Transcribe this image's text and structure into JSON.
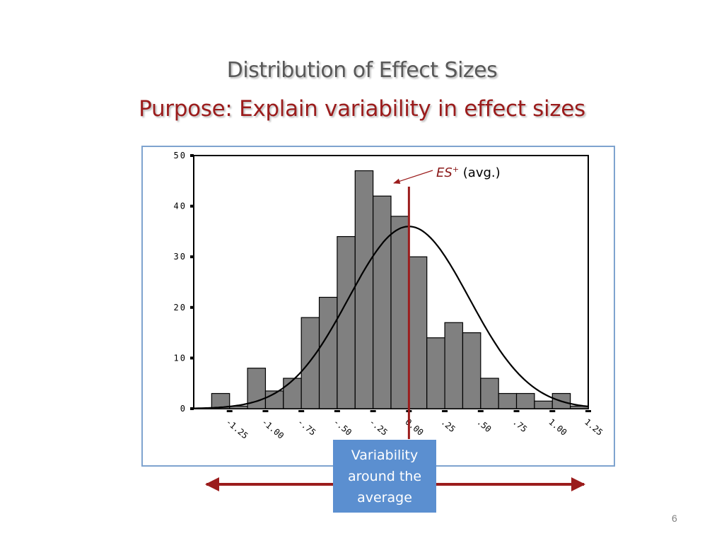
{
  "title": "Distribution of Effect Sizes",
  "subtitle": "Purpose: Explain variability in effect sizes",
  "page_number": "6",
  "annotation": {
    "es_symbol": "ES",
    "es_superscript": "+",
    "es_suffix": "(avg.)"
  },
  "variability_box": {
    "line1": "Variability",
    "line2": "around the",
    "line3": "average"
  },
  "colors": {
    "bar_fill": "#808080",
    "accent_red": "#9b1c1c",
    "frame_blue": "#7ea3cf",
    "box_blue": "#5b8fd0"
  },
  "chart_data": {
    "type": "bar",
    "title": "",
    "xlabel": "",
    "ylabel": "",
    "ylim": [
      0,
      50
    ],
    "yticks": [
      "0",
      "10",
      "20",
      "30",
      "40",
      "50"
    ],
    "xtick_labels": [
      "-1.25",
      "-1.00",
      "-.75",
      "-.50",
      "-.25",
      "0.00",
      ".25",
      ".50",
      ".75",
      "1.00",
      "1.25"
    ],
    "bin_start": -1.5,
    "bin_width": 0.125,
    "values": [
      0,
      3,
      0.5,
      8,
      3.5,
      6,
      18,
      22,
      34,
      47,
      42,
      38,
      30,
      14,
      17,
      15,
      6,
      3,
      3,
      1.5,
      3,
      0.5
    ],
    "normal_curve": {
      "mean": 0.0,
      "sd": 0.42,
      "peak": 36
    },
    "mean_line_x": 0.0,
    "grid": false,
    "legend": "none"
  }
}
